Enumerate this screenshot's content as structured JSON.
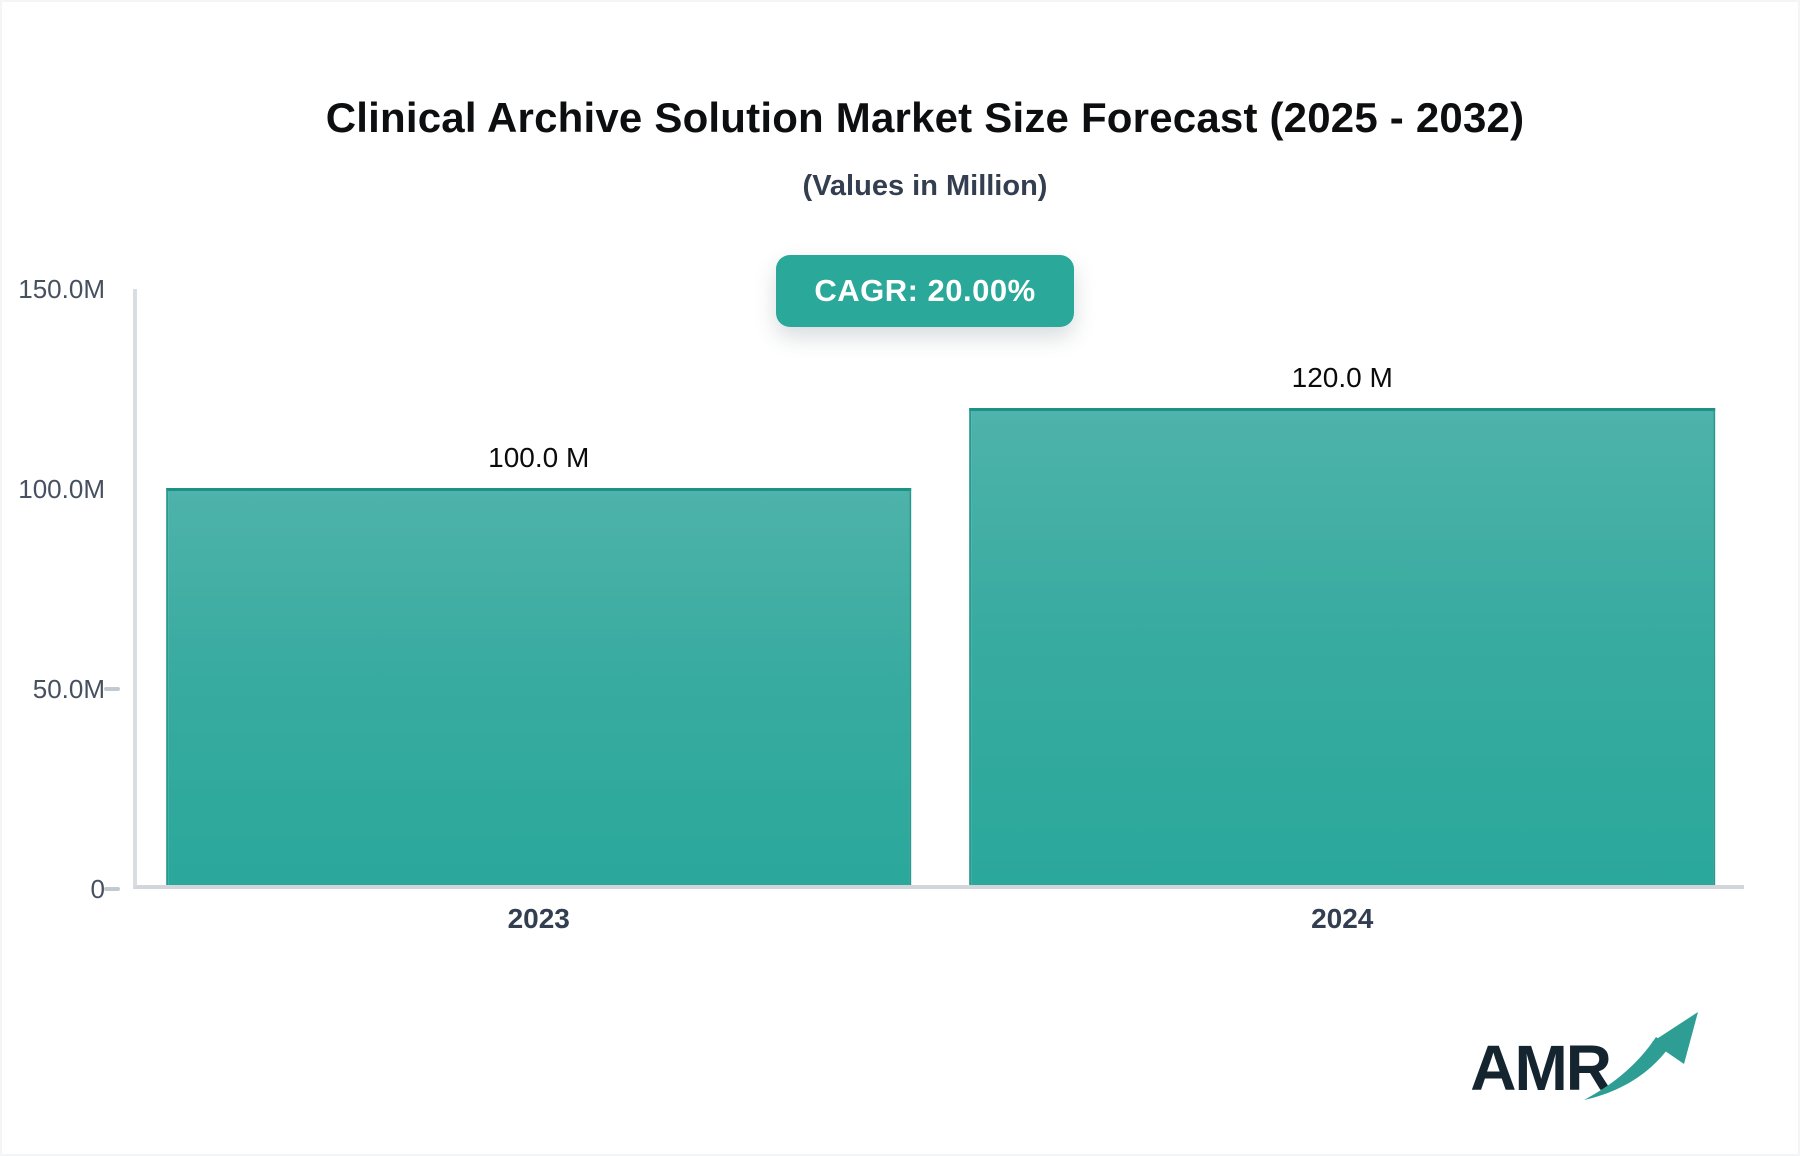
{
  "header": {
    "title": "Clinical Archive Solution Market Size Forecast (2025 - 2032)",
    "subtitle": "(Values in Million)",
    "badge": "CAGR: 20.00%"
  },
  "chart_data": {
    "type": "bar",
    "title": "Clinical Archive Solution Market Size Forecast (2025 - 2032)",
    "subtitle": "(Values in Million)",
    "categories": [
      "2023",
      "2024"
    ],
    "values": [
      100,
      120
    ],
    "value_labels": [
      "100.0 M",
      "120.0 M"
    ],
    "xlabel": "",
    "ylabel": "",
    "ylim": [
      0,
      150
    ],
    "grid": false,
    "legend": "none",
    "yticks": [
      {
        "value": 0,
        "label": "0",
        "dash": true
      },
      {
        "value": 50,
        "label": "50.0M",
        "dash": true
      },
      {
        "value": 100,
        "label": "100.0M",
        "dash": false
      },
      {
        "value": 150,
        "label": "150.0M",
        "dash": false
      }
    ]
  },
  "colors": {
    "accent": "#2aa89a",
    "bar_top": "#4eb3aa",
    "bar_bottom": "#2aa89b",
    "bar_border": "#1b9187",
    "axis_line": "#d9dde2",
    "tick_label": "#46505f",
    "title_text": "#0d0e10",
    "badge_text": "#ffffff",
    "logo_text": "#152530",
    "logo_arrow": "#2e9e94"
  },
  "footer": {
    "logo_text": "AMR"
  }
}
